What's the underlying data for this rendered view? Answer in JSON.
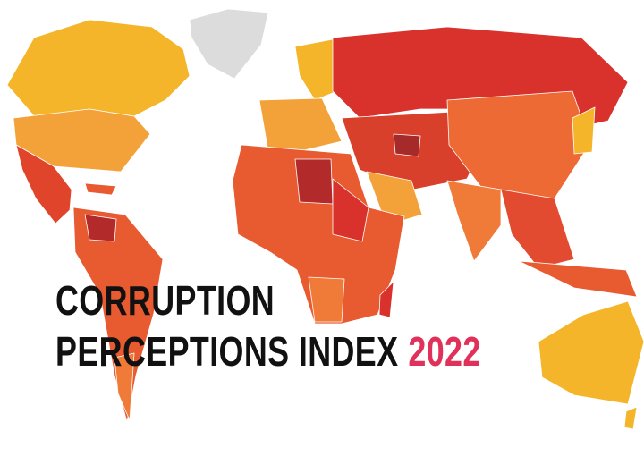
{
  "title": {
    "line1": "CORRUPTION",
    "line2": "PERCEPTIONS INDEX",
    "year": "2022"
  }
}
